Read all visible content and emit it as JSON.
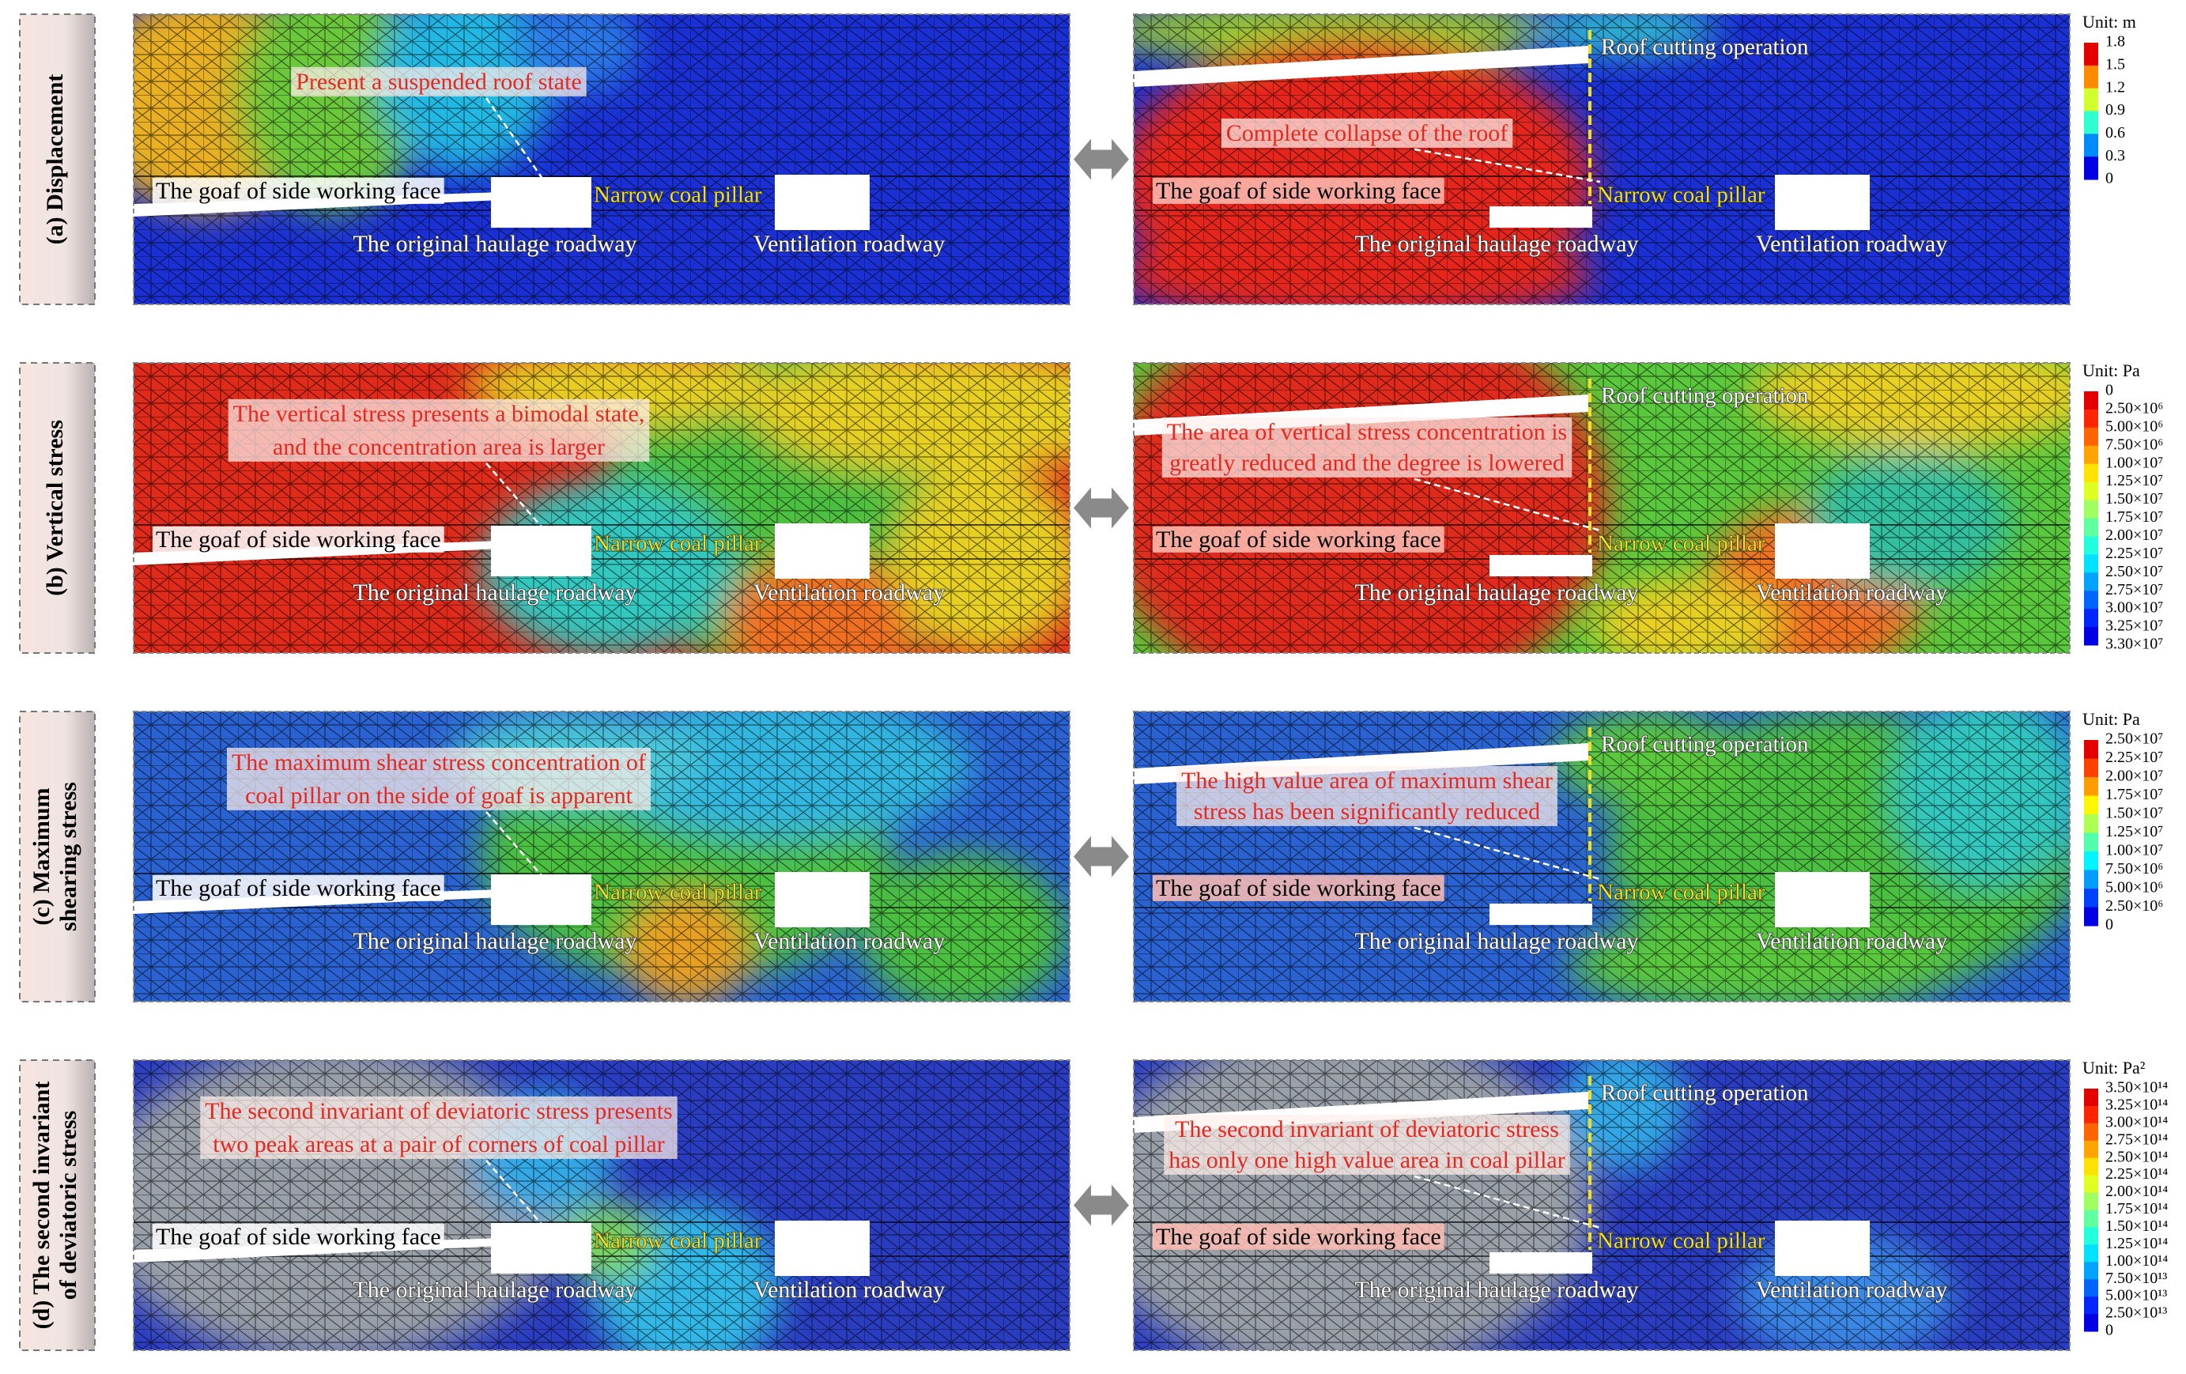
{
  "rows": [
    {
      "label": [
        "(a) Displacement"
      ],
      "left": {
        "annotation": [
          "Present a suspended roof state"
        ],
        "goaf": "The goaf of side working face",
        "pillar": "Narrow coal pillar",
        "haulage": "The original haulage roadway",
        "ventilation": "Ventilation roadway"
      },
      "right": {
        "annotation": [
          "Complete collapse of the roof"
        ],
        "roof": "Roof cutting operation",
        "goaf": "The goaf of side working face",
        "pillar": "Narrow coal pillar",
        "haulage": "The original haulage roadway",
        "ventilation": "Ventilation roadway"
      },
      "legend": {
        "unit": "Unit: m",
        "labels": [
          "1.8",
          "1.5",
          "1.2",
          "0.9",
          "0.6",
          "0.3",
          "0"
        ]
      }
    },
    {
      "label": [
        "(b) Vertical stress"
      ],
      "left": {
        "annotation": [
          "The vertical stress presents a bimodal state,",
          "and the concentration area is larger"
        ],
        "goaf": "The goaf of side working face",
        "pillar": "Narrow coal pillar",
        "haulage": "The original haulage roadway",
        "ventilation": "Ventilation roadway"
      },
      "right": {
        "annotation": [
          "The area of vertical stress concentration is",
          "greatly reduced and the degree is lowered"
        ],
        "roof": "Roof cutting operation",
        "goaf": "The goaf of side working face",
        "pillar": "Narrow coal pillar",
        "haulage": "The original haulage roadway",
        "ventilation": "Ventilation roadway"
      },
      "legend": {
        "unit": "Unit: Pa",
        "labels": [
          "0",
          "2.50×10⁶",
          "5.00×10⁶",
          "7.50×10⁶",
          "1.00×10⁷",
          "1.25×10⁷",
          "1.50×10⁷",
          "1.75×10⁷",
          "2.00×10⁷",
          "2.25×10⁷",
          "2.50×10⁷",
          "2.75×10⁷",
          "3.00×10⁷",
          "3.25×10⁷",
          "3.30×10⁷"
        ]
      }
    },
    {
      "label": [
        "(c) Maximum",
        "shearing stress"
      ],
      "left": {
        "annotation": [
          "The maximum shear stress concentration of",
          "coal pillar on the side of goaf is apparent"
        ],
        "goaf": "The goaf of side working face",
        "pillar": "Narrow coal pillar",
        "haulage": "The original haulage roadway",
        "ventilation": "Ventilation roadway"
      },
      "right": {
        "annotation": [
          "The high value area of maximum shear",
          "stress has been significantly reduced"
        ],
        "roof": "Roof cutting operation",
        "goaf": "The goaf of side working face",
        "pillar": "Narrow coal pillar",
        "haulage": "The original haulage roadway",
        "ventilation": "Ventilation roadway"
      },
      "legend": {
        "unit": "Unit: Pa",
        "labels": [
          "2.50×10⁷",
          "2.25×10⁷",
          "2.00×10⁷",
          "1.75×10⁷",
          "1.50×10⁷",
          "1.25×10⁷",
          "1.00×10⁷",
          "7.50×10⁶",
          "5.00×10⁶",
          "2.50×10⁶",
          "0"
        ]
      }
    },
    {
      "label": [
        "(d) The second invariant",
        "of deviatoric stress"
      ],
      "left": {
        "annotation": [
          "The second invariant of deviatoric stress presents",
          "two peak areas at a pair of corners of coal pillar"
        ],
        "goaf": "The goaf of side working face",
        "pillar": "Narrow coal pillar",
        "haulage": "The original haulage roadway",
        "ventilation": "Ventilation roadway"
      },
      "right": {
        "annotation": [
          "The second invariant of deviatoric stress",
          "has only one high value area in coal pillar"
        ],
        "roof": "Roof cutting operation",
        "goaf": "The goaf of side working face",
        "pillar": "Narrow coal pillar",
        "haulage": "The original haulage roadway",
        "ventilation": "Ventilation roadway"
      },
      "legend": {
        "unit": "Unit: Pa²",
        "labels": [
          "3.50×10¹⁴",
          "3.25×10¹⁴",
          "3.00×10¹⁴",
          "2.75×10¹⁴",
          "2.50×10¹⁴",
          "2.25×10¹⁴",
          "2.00×10¹⁴",
          "1.75×10¹⁴",
          "1.50×10¹⁴",
          "1.25×10¹⁴",
          "1.00×10¹⁴",
          "7.50×10¹³",
          "5.00×10¹³",
          "2.50×10¹³",
          "0"
        ]
      }
    }
  ]
}
